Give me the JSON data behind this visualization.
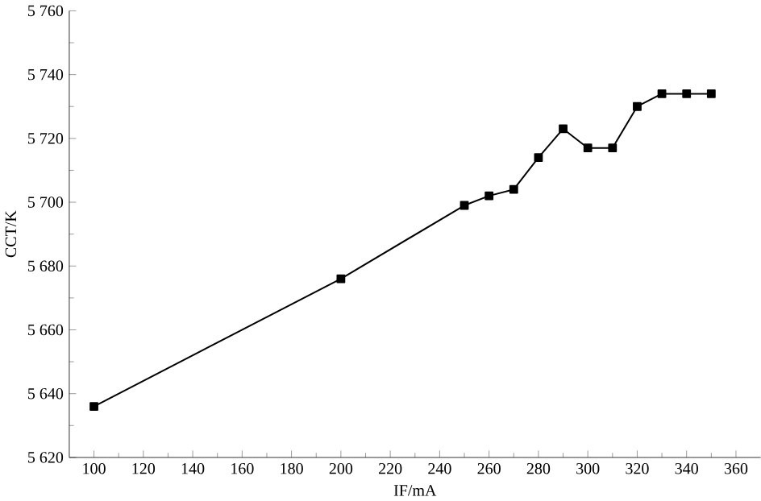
{
  "chart_data": {
    "type": "line",
    "xlabel": "IF/mA",
    "ylabel": "CCT/K",
    "x": [
      100,
      200,
      250,
      260,
      270,
      280,
      290,
      300,
      310,
      320,
      330,
      340,
      350
    ],
    "values": [
      5636,
      5676,
      5699,
      5702,
      5704,
      5714,
      5723,
      5717,
      5717,
      5730,
      5734,
      5734,
      5734
    ],
    "color": "#000000",
    "marker": "square",
    "line_style": "solid",
    "xlim": [
      90,
      370
    ],
    "ylim": [
      5620,
      5760
    ],
    "xticks": [
      100,
      120,
      140,
      160,
      180,
      200,
      220,
      240,
      260,
      280,
      300,
      320,
      340,
      360
    ],
    "yticks": [
      {
        "value": 5620,
        "label": "5 620"
      },
      {
        "value": 5640,
        "label": "5 640"
      },
      {
        "value": 5660,
        "label": "5 660"
      },
      {
        "value": 5680,
        "label": "5 680"
      },
      {
        "value": 5700,
        "label": "5 700"
      },
      {
        "value": 5720,
        "label": "5 720"
      },
      {
        "value": 5740,
        "label": "5 740"
      },
      {
        "value": 5760,
        "label": "5 760"
      }
    ]
  }
}
